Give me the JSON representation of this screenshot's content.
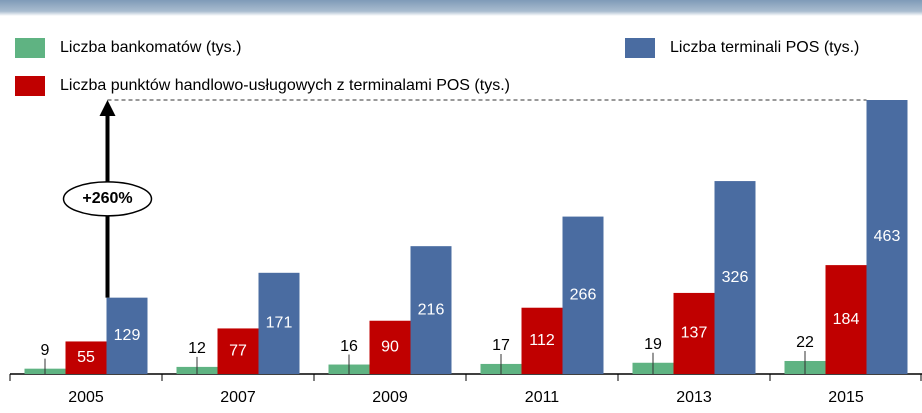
{
  "chart_data": {
    "type": "bar",
    "annotation": "+260%",
    "categories": [
      "2005",
      "2007",
      "2009",
      "2011",
      "2013",
      "2015"
    ],
    "series": [
      {
        "name": "Liczba bankomatów (tys.)",
        "color": "#5fb382",
        "values": [
          9,
          12,
          16,
          17,
          19,
          22
        ]
      },
      {
        "name": "Liczba punktów handlowo-usługowych z terminalami POS (tys.)",
        "color": "#c00000",
        "values": [
          55,
          77,
          90,
          112,
          137,
          184
        ]
      },
      {
        "name": "Liczba terminali POS (tys.)",
        "color": "#4a6ca1",
        "values": [
          129,
          171,
          216,
          266,
          326,
          463
        ]
      }
    ]
  }
}
